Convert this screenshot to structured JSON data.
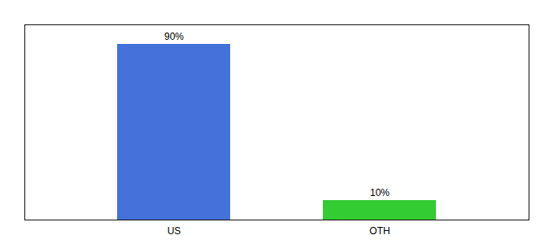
{
  "chart_data": {
    "type": "bar",
    "categories": [
      "US",
      "OTH"
    ],
    "values": [
      90,
      10
    ],
    "value_labels": [
      "90%",
      "10%"
    ],
    "colors": [
      "#4472db",
      "#33cc33"
    ],
    "ylim": [
      0,
      100
    ],
    "data_labels": true,
    "tick_labels": "x"
  }
}
